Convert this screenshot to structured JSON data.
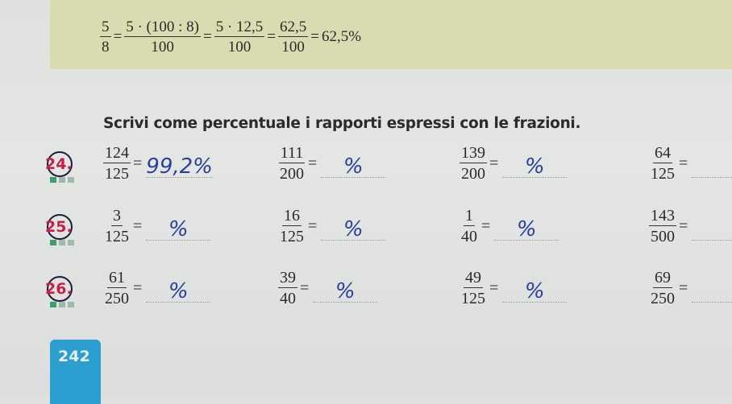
{
  "example": {
    "terms": [
      {
        "num": "5",
        "den": "8"
      },
      {
        "num": "5 · (100 : 8)",
        "den": "100"
      },
      {
        "num": "5 · 12,5",
        "den": "100"
      },
      {
        "num": "62,5",
        "den": "100"
      }
    ],
    "result": "62,5%"
  },
  "heading": "Scrivi come percentuale i rapporti espressi con le frazioni.",
  "exercises": [
    {
      "number": "24.",
      "items": [
        {
          "num": "124",
          "den": "125",
          "answer": "99,2%"
        },
        {
          "num": "111",
          "den": "200",
          "answer": "%"
        },
        {
          "num": "139",
          "den": "200",
          "answer": "%"
        },
        {
          "num": "64",
          "den": "125",
          "answer": ""
        }
      ]
    },
    {
      "number": "25.",
      "items": [
        {
          "num": "3",
          "den": "125",
          "answer": "%"
        },
        {
          "num": "16",
          "den": "125",
          "answer": "%"
        },
        {
          "num": "1",
          "den": "40",
          "answer": "%"
        },
        {
          "num": "143",
          "den": "500",
          "answer": ""
        }
      ]
    },
    {
      "number": "26.",
      "items": [
        {
          "num": "61",
          "den": "250",
          "answer": "%"
        },
        {
          "num": "39",
          "den": "40",
          "answer": "%"
        },
        {
          "num": "49",
          "den": "125",
          "answer": "%"
        },
        {
          "num": "69",
          "den": "250",
          "answer": ""
        }
      ]
    }
  ],
  "page_number": "242",
  "colors": {
    "band": "#d9dbb0",
    "tab": "#2a9fd0",
    "exercise_number": "#c8204a",
    "handwriting": "#2a3f9e"
  }
}
